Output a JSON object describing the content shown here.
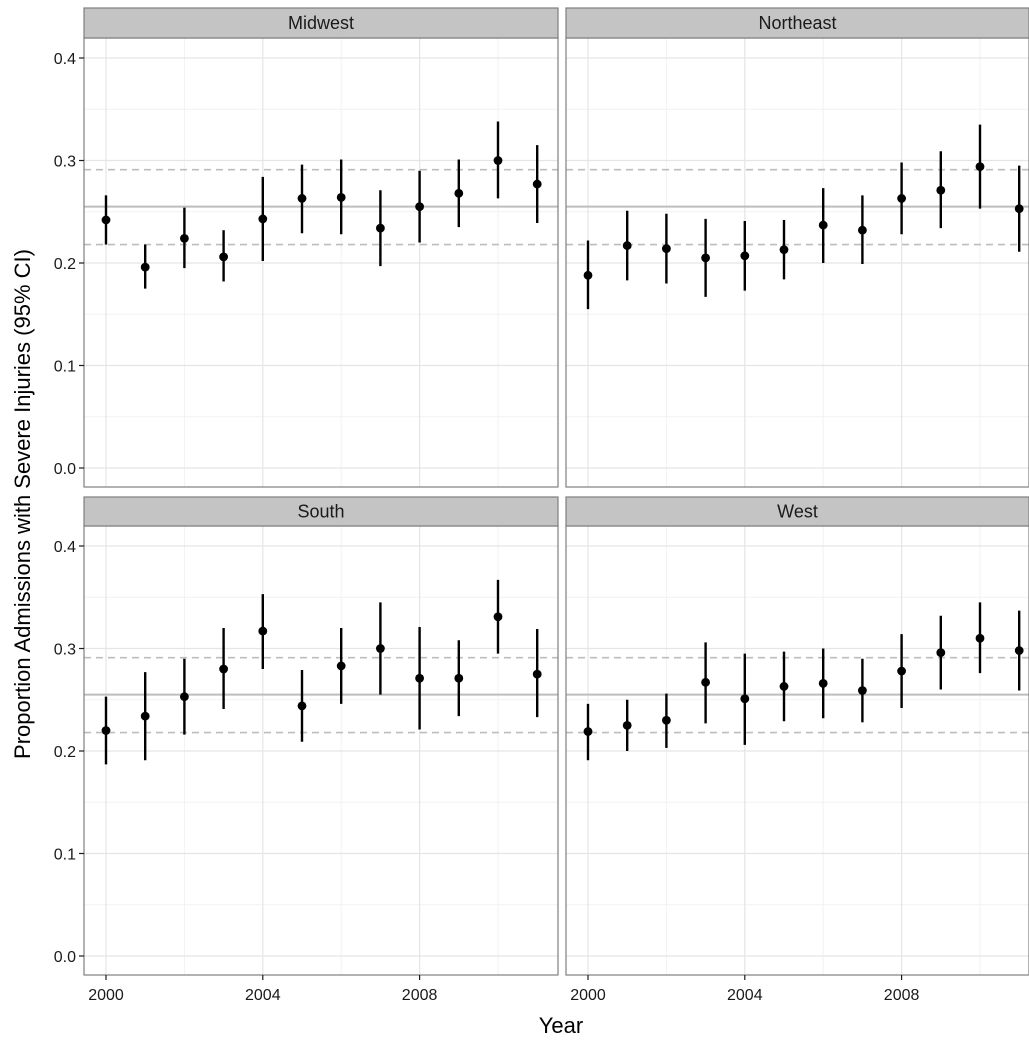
{
  "chart_data": {
    "type": "scatter",
    "title": "",
    "xlabel": "Year",
    "ylabel": "Proportion Admissions with Severe Injuries (95% CI)",
    "xlim": [
      1999.5,
      2011.3
    ],
    "ylim": [
      -0.02,
      0.44
    ],
    "x_ticks": [
      2000,
      2004,
      2008
    ],
    "y_ticks": [
      0.0,
      0.1,
      0.2,
      0.3,
      0.4
    ],
    "x_tick_labels": [
      "2000",
      "2004",
      "2008"
    ],
    "y_tick_labels": [
      "0.0",
      "0.1",
      "0.2",
      "0.3",
      "0.4"
    ],
    "grid": true,
    "reference_lines": {
      "solid": 0.255,
      "dashed": [
        0.218,
        0.291
      ],
      "color": "#bdbdbd"
    },
    "colors": {
      "points": "#000000",
      "strip_background": "#c4c4c4",
      "panel_border": "#7f7f7f",
      "grid_major": "#e5e5e5",
      "grid_minor": "#f2f2f2"
    },
    "panels": [
      {
        "name": "Midwest",
        "points": [
          {
            "x": 2000,
            "y": 0.242,
            "lo": 0.218,
            "hi": 0.266
          },
          {
            "x": 2001,
            "y": 0.196,
            "lo": 0.175,
            "hi": 0.218
          },
          {
            "x": 2002,
            "y": 0.224,
            "lo": 0.195,
            "hi": 0.254
          },
          {
            "x": 2003,
            "y": 0.206,
            "lo": 0.182,
            "hi": 0.232
          },
          {
            "x": 2004,
            "y": 0.243,
            "lo": 0.202,
            "hi": 0.284
          },
          {
            "x": 2005,
            "y": 0.263,
            "lo": 0.229,
            "hi": 0.296
          },
          {
            "x": 2006,
            "y": 0.264,
            "lo": 0.228,
            "hi": 0.301
          },
          {
            "x": 2007,
            "y": 0.234,
            "lo": 0.197,
            "hi": 0.271
          },
          {
            "x": 2008,
            "y": 0.255,
            "lo": 0.22,
            "hi": 0.29
          },
          {
            "x": 2009,
            "y": 0.268,
            "lo": 0.235,
            "hi": 0.301
          },
          {
            "x": 2010,
            "y": 0.3,
            "lo": 0.263,
            "hi": 0.338
          },
          {
            "x": 2011,
            "y": 0.277,
            "lo": 0.239,
            "hi": 0.315
          }
        ]
      },
      {
        "name": "Northeast",
        "points": [
          {
            "x": 2000,
            "y": 0.188,
            "lo": 0.155,
            "hi": 0.222
          },
          {
            "x": 2001,
            "y": 0.217,
            "lo": 0.183,
            "hi": 0.251
          },
          {
            "x": 2002,
            "y": 0.214,
            "lo": 0.18,
            "hi": 0.248
          },
          {
            "x": 2003,
            "y": 0.205,
            "lo": 0.167,
            "hi": 0.243
          },
          {
            "x": 2004,
            "y": 0.207,
            "lo": 0.173,
            "hi": 0.241
          },
          {
            "x": 2005,
            "y": 0.213,
            "lo": 0.184,
            "hi": 0.242
          },
          {
            "x": 2006,
            "y": 0.237,
            "lo": 0.2,
            "hi": 0.273
          },
          {
            "x": 2007,
            "y": 0.232,
            "lo": 0.199,
            "hi": 0.266
          },
          {
            "x": 2008,
            "y": 0.263,
            "lo": 0.228,
            "hi": 0.298
          },
          {
            "x": 2009,
            "y": 0.271,
            "lo": 0.234,
            "hi": 0.309
          },
          {
            "x": 2010,
            "y": 0.294,
            "lo": 0.253,
            "hi": 0.335
          },
          {
            "x": 2011,
            "y": 0.253,
            "lo": 0.211,
            "hi": 0.295
          }
        ]
      },
      {
        "name": "South",
        "points": [
          {
            "x": 2000,
            "y": 0.22,
            "lo": 0.187,
            "hi": 0.253
          },
          {
            "x": 2001,
            "y": 0.234,
            "lo": 0.191,
            "hi": 0.277
          },
          {
            "x": 2002,
            "y": 0.253,
            "lo": 0.216,
            "hi": 0.29
          },
          {
            "x": 2003,
            "y": 0.28,
            "lo": 0.241,
            "hi": 0.32
          },
          {
            "x": 2004,
            "y": 0.317,
            "lo": 0.28,
            "hi": 0.353
          },
          {
            "x": 2005,
            "y": 0.244,
            "lo": 0.209,
            "hi": 0.279
          },
          {
            "x": 2006,
            "y": 0.283,
            "lo": 0.246,
            "hi": 0.32
          },
          {
            "x": 2007,
            "y": 0.3,
            "lo": 0.255,
            "hi": 0.345
          },
          {
            "x": 2008,
            "y": 0.271,
            "lo": 0.221,
            "hi": 0.321
          },
          {
            "x": 2009,
            "y": 0.271,
            "lo": 0.234,
            "hi": 0.308
          },
          {
            "x": 2010,
            "y": 0.331,
            "lo": 0.295,
            "hi": 0.367
          },
          {
            "x": 2011,
            "y": 0.275,
            "lo": 0.233,
            "hi": 0.319
          }
        ]
      },
      {
        "name": "West",
        "points": [
          {
            "x": 2000,
            "y": 0.219,
            "lo": 0.191,
            "hi": 0.246
          },
          {
            "x": 2001,
            "y": 0.225,
            "lo": 0.2,
            "hi": 0.25
          },
          {
            "x": 2002,
            "y": 0.23,
            "lo": 0.203,
            "hi": 0.256
          },
          {
            "x": 2003,
            "y": 0.267,
            "lo": 0.227,
            "hi": 0.306
          },
          {
            "x": 2004,
            "y": 0.251,
            "lo": 0.206,
            "hi": 0.295
          },
          {
            "x": 2005,
            "y": 0.263,
            "lo": 0.229,
            "hi": 0.297
          },
          {
            "x": 2006,
            "y": 0.266,
            "lo": 0.232,
            "hi": 0.3
          },
          {
            "x": 2007,
            "y": 0.259,
            "lo": 0.228,
            "hi": 0.29
          },
          {
            "x": 2008,
            "y": 0.278,
            "lo": 0.242,
            "hi": 0.314
          },
          {
            "x": 2009,
            "y": 0.296,
            "lo": 0.26,
            "hi": 0.332
          },
          {
            "x": 2010,
            "y": 0.31,
            "lo": 0.276,
            "hi": 0.345
          },
          {
            "x": 2011,
            "y": 0.298,
            "lo": 0.259,
            "hi": 0.337
          }
        ]
      }
    ]
  }
}
